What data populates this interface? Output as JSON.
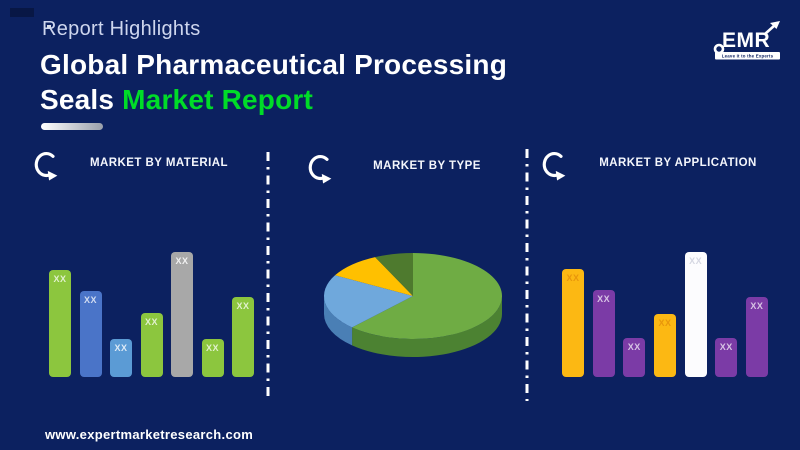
{
  "page": {
    "background": "#0C2160"
  },
  "header": {
    "eyebrow": "Report Highlights",
    "title_line1": "Global Pharmaceutical Processing",
    "title_line2_white": "Seals ",
    "title_line2_accent": "Market Report",
    "accent_color": "#00DC28"
  },
  "logo": {
    "wordmark": "EMR",
    "tagline": "Leave it to the Experts"
  },
  "footer": {
    "url": "www.expertmarketresearch.com"
  },
  "chart_data": [
    {
      "type": "bar",
      "title": "MARKET BY MATERIAL",
      "bar_labels": [
        "XX",
        "XX",
        "XX",
        "XX",
        "XX",
        "XX",
        "XX"
      ],
      "values": [
        107,
        86,
        38,
        64,
        125,
        38,
        80
      ],
      "units": "relative bar height in px (no numeric axis shown; bars labeled XX)",
      "ylim": [
        0,
        130
      ],
      "grid": false,
      "legend": false,
      "bar_colors": [
        "#8CC63E",
        "#4A74C8",
        "#5B9BD5",
        "#8CC63E",
        "#A8A8A8",
        "#8CC63E",
        "#8CC63E"
      ],
      "label_colors": [
        "rgba(255,255,255,0.75)",
        "rgba(255,255,255,0.75)",
        "rgba(255,255,255,0.8)",
        "rgba(255,255,255,0.75)",
        "rgba(255,255,255,0.85)",
        "rgba(255,255,255,0.75)",
        "rgba(255,255,255,0.75)"
      ]
    },
    {
      "type": "pie",
      "title": "MARKET BY TYPE",
      "units": "percent (estimated from arc angles; no slice labels shown)",
      "legend": false,
      "style": "3d",
      "slices": [
        {
          "value": 62,
          "color": "#6FAC44",
          "side_color": "#4C8232"
        },
        {
          "value": 21,
          "color": "#6FA8DC",
          "side_color": "#4A7FB5"
        },
        {
          "value": 10,
          "color": "#FFC000",
          "side_color": "#C79500"
        },
        {
          "value": 7,
          "color": "#4E7A2E",
          "side_color": "#3A5C22"
        }
      ]
    },
    {
      "type": "bar",
      "title": "MARKET BY APPLICATION",
      "bar_labels": [
        "XX",
        "XX",
        "XX",
        "XX",
        "XX",
        "XX",
        "XX"
      ],
      "values": [
        108,
        87,
        39,
        63,
        125,
        39,
        80
      ],
      "units": "relative bar height in px (no numeric axis shown; bars labeled XX)",
      "ylim": [
        0,
        130
      ],
      "grid": false,
      "legend": false,
      "bar_colors": [
        "#FCB813",
        "#7B3BA6",
        "#7B3BA6",
        "#FCB813",
        "#FCFCFE",
        "#7B3BA6",
        "#7B3BA6"
      ],
      "label_colors": [
        "#E8960C",
        "rgba(255,255,255,0.7)",
        "rgba(255,255,255,0.7)",
        "#E8960C",
        "#D5D7E2",
        "rgba(255,255,255,0.7)",
        "rgba(255,255,255,0.7)"
      ]
    }
  ]
}
